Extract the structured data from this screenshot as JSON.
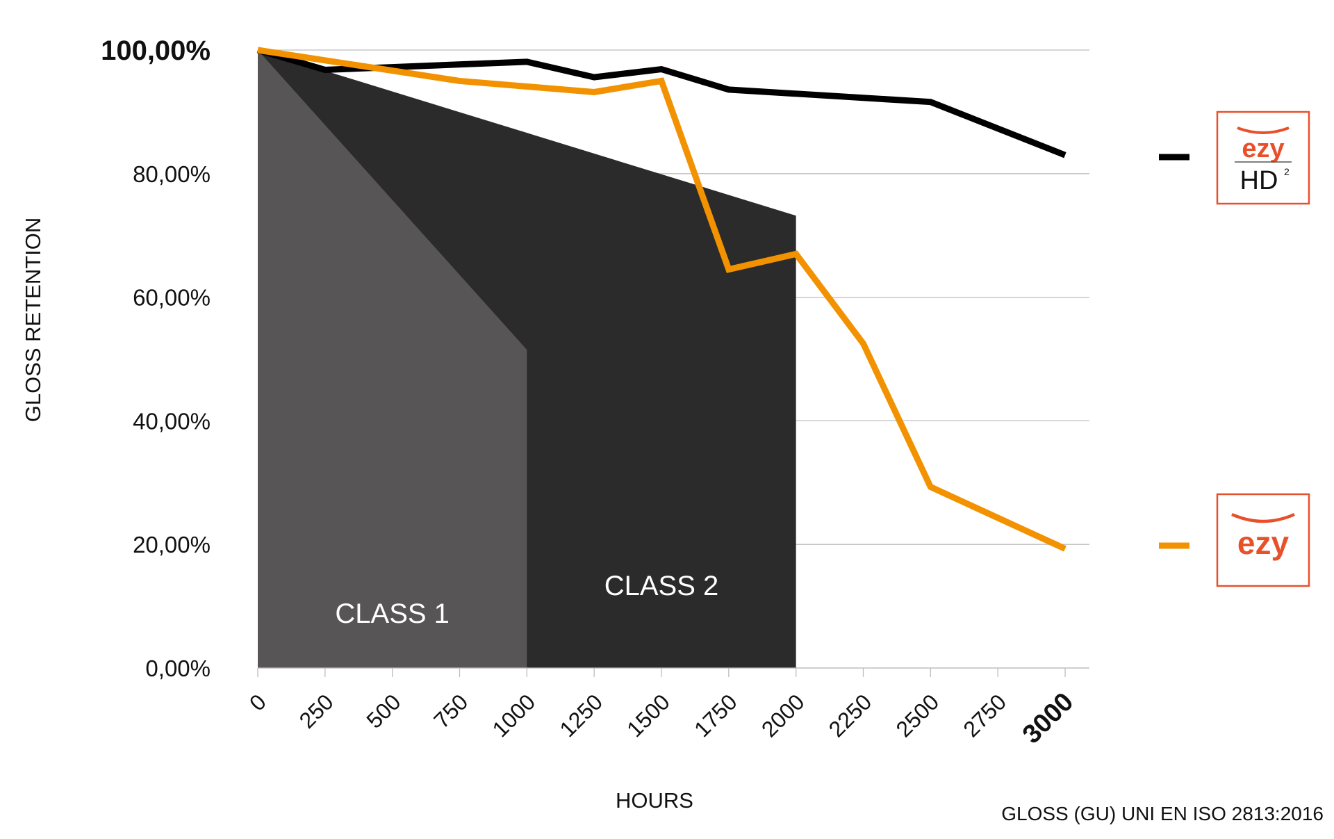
{
  "chart_data": {
    "type": "line",
    "xlabel": "HOURS",
    "ylabel": "GLOSS RETENTION",
    "footnote": "GLOSS (GU)  UNI EN ISO 2813:2016",
    "x": [
      0,
      250,
      500,
      750,
      1000,
      1250,
      1500,
      1750,
      2000,
      2250,
      2500,
      2750,
      3000
    ],
    "x_tick_labels": [
      "0",
      "250",
      "500",
      "750",
      "1000",
      "1250",
      "1500",
      "1750",
      "2000",
      "2250",
      "2500",
      "2750",
      "3000"
    ],
    "xlim": [
      0,
      3000
    ],
    "ylim": [
      0,
      100
    ],
    "y_ticks": [
      0,
      20,
      40,
      60,
      80,
      100
    ],
    "y_tick_labels": [
      "0,00%",
      "20,00%",
      "40,00%",
      "60,00%",
      "80,00%",
      "100,00%"
    ],
    "grid": "horizontal",
    "legend_position": "right",
    "series": [
      {
        "logo": "ezy HD²",
        "color": "#000000",
        "x": [
          0,
          250,
          1000,
          1250,
          1500,
          1750,
          2500,
          3000
        ],
        "values": [
          100,
          96.8,
          98.1,
          95.6,
          96.9,
          93.6,
          91.6,
          83.0
        ]
      },
      {
        "logo": "ezy",
        "color": "#f39200",
        "x": [
          0,
          750,
          1250,
          1500,
          1750,
          2000,
          2250,
          2500,
          3000
        ],
        "values": [
          100,
          95.0,
          93.2,
          95.0,
          64.5,
          67.0,
          52.5,
          29.3,
          19.3
        ]
      }
    ],
    "areas": [
      {
        "name": "CLASS 1",
        "color": "#575556",
        "x": [
          0,
          1000
        ],
        "values": [
          100,
          51.5
        ]
      },
      {
        "name": "CLASS 2",
        "color": "#2b2b2b",
        "x": [
          0,
          2000
        ],
        "values": [
          100,
          73.2
        ]
      }
    ],
    "legend_logos": {
      "hd_top": "ezy",
      "hd_bottom": "HD",
      "hd_sup": "2",
      "plain": "ezy",
      "frame_color": "#e8502a"
    }
  }
}
